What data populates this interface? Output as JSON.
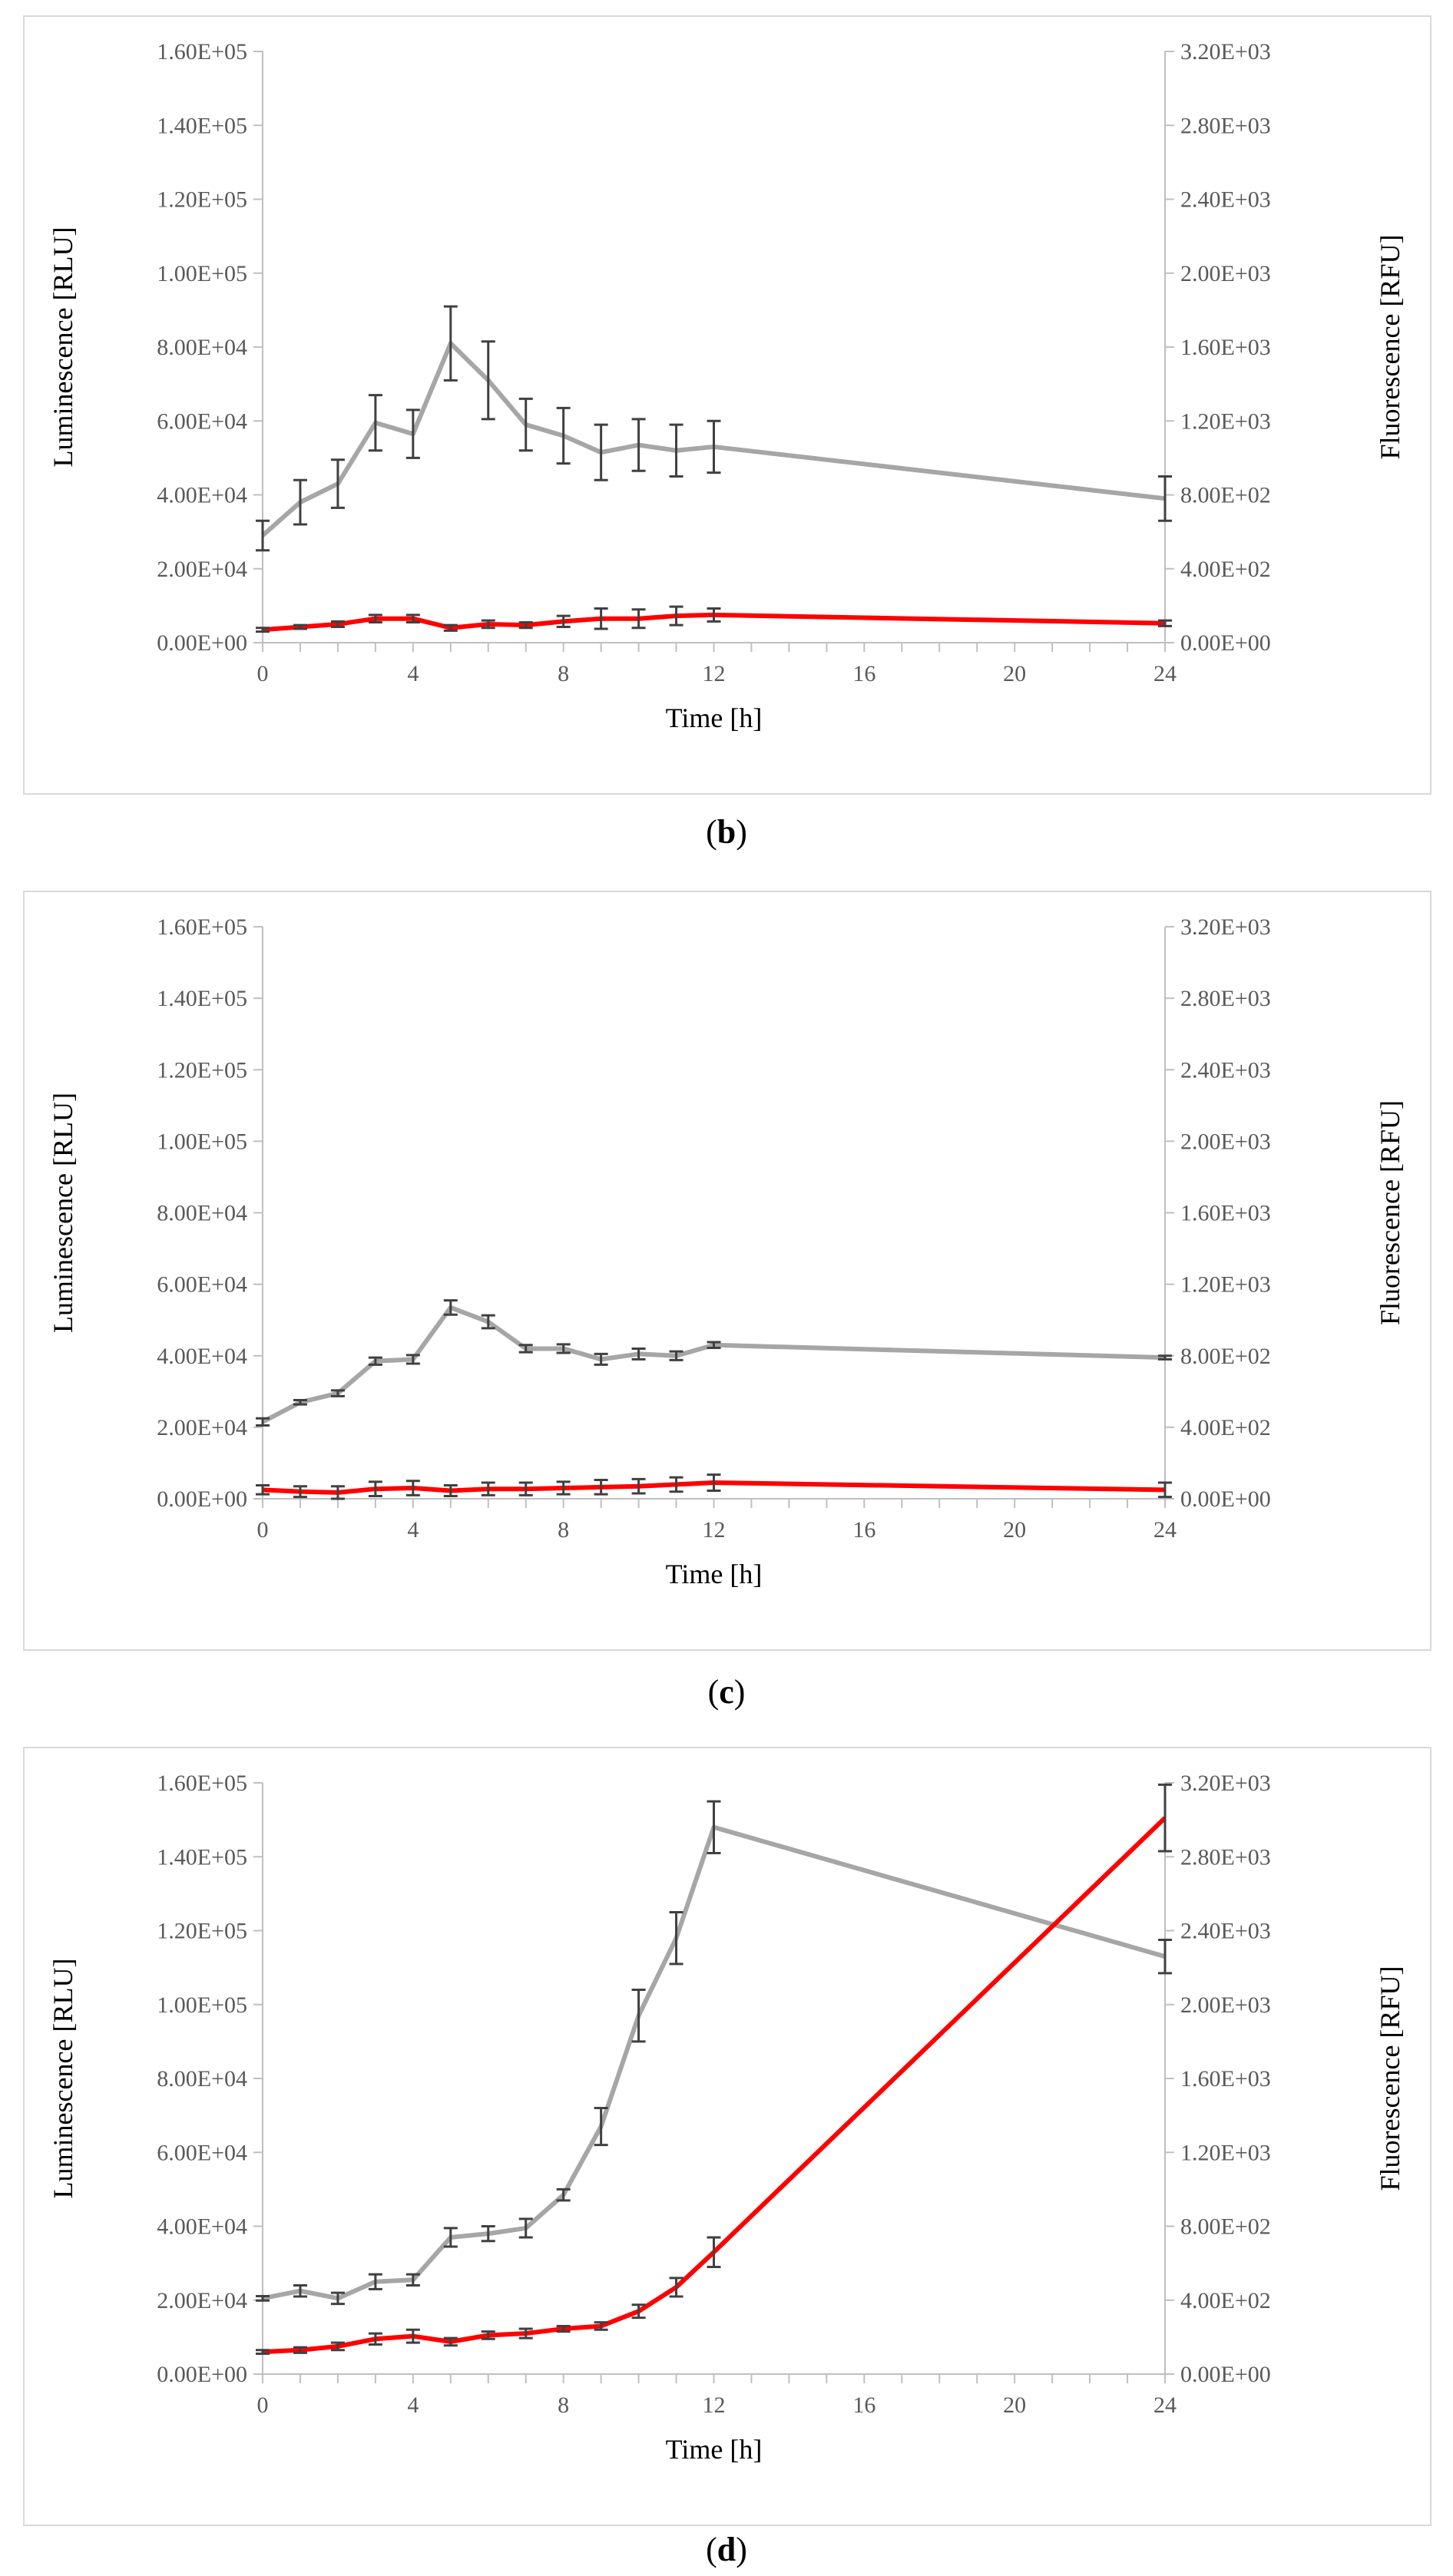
{
  "captions": {
    "b": "b",
    "c": "c",
    "d": "d"
  },
  "colors": {
    "luminescence": "#a6a6a6",
    "fluorescence": "#ff0000",
    "errorbar": "#404040",
    "axis": "#bfbfbf",
    "tick_text": "#595959"
  },
  "chart_data": [
    {
      "id": "b",
      "type": "line",
      "x": [
        0,
        1,
        2,
        3,
        4,
        5,
        6,
        7,
        8,
        9,
        10,
        11,
        12,
        24
      ],
      "xlabel": "Time [h]",
      "xticks": [
        "0",
        "4",
        "8",
        "12",
        "16",
        "20",
        "24"
      ],
      "xlim": [
        0,
        24
      ],
      "ylabel": "Luminescence [RLU]",
      "y2label": "Fluorescence [RFU]",
      "ylim": [
        0,
        160000
      ],
      "y2lim": [
        0,
        3200
      ],
      "yticks": [
        "0.00E+00",
        "2.00E+04",
        "4.00E+04",
        "6.00E+04",
        "8.00E+04",
        "1.00E+05",
        "1.20E+05",
        "1.40E+05",
        "1.60E+05"
      ],
      "y2ticks": [
        "0.00E+00",
        "4.00E+02",
        "8.00E+02",
        "1.20E+03",
        "1.60E+03",
        "2.00E+03",
        "2.40E+03",
        "2.80E+03",
        "3.20E+03"
      ],
      "series": [
        {
          "name": "Luminescence",
          "axis": "left",
          "color": "#a6a6a6",
          "values": [
            29000,
            38000,
            43000,
            59500,
            56500,
            81000,
            71000,
            59000,
            56000,
            51500,
            53500,
            52000,
            53000,
            39000
          ],
          "errors": [
            4000,
            6000,
            6500,
            7500,
            6500,
            10000,
            10500,
            7000,
            7500,
            7500,
            7000,
            7000,
            7000,
            6000
          ]
        },
        {
          "name": "Fluorescence",
          "axis": "right",
          "color": "#ff0000",
          "values": [
            70,
            85,
            100,
            130,
            130,
            80,
            100,
            95,
            115,
            130,
            130,
            145,
            150,
            105
          ],
          "errors": [
            10,
            10,
            15,
            20,
            20,
            15,
            20,
            15,
            30,
            55,
            50,
            50,
            35,
            15
          ]
        }
      ]
    },
    {
      "id": "c",
      "type": "line",
      "x": [
        0,
        1,
        2,
        3,
        4,
        5,
        6,
        7,
        8,
        9,
        10,
        11,
        12,
        24
      ],
      "xlabel": "Time [h]",
      "xticks": [
        "0",
        "4",
        "8",
        "12",
        "16",
        "20",
        "24"
      ],
      "xlim": [
        0,
        24
      ],
      "ylabel": "Luminescence [RLU]",
      "y2label": "Fluorescence [RFU]",
      "ylim": [
        0,
        160000
      ],
      "y2lim": [
        0,
        3200
      ],
      "yticks": [
        "0.00E+00",
        "2.00E+04",
        "4.00E+04",
        "6.00E+04",
        "8.00E+04",
        "1.00E+05",
        "1.20E+05",
        "1.40E+05",
        "1.60E+05"
      ],
      "y2ticks": [
        "0.00E+00",
        "4.00E+02",
        "8.00E+02",
        "1.20E+03",
        "1.60E+03",
        "2.00E+03",
        "2.40E+03",
        "2.80E+03",
        "3.20E+03"
      ],
      "series": [
        {
          "name": "Luminescence",
          "axis": "left",
          "color": "#a6a6a6",
          "values": [
            21500,
            27000,
            29500,
            38500,
            39000,
            53500,
            49500,
            42000,
            42000,
            39000,
            40500,
            40000,
            43000,
            39500
          ],
          "errors": [
            1000,
            600,
            800,
            1000,
            1200,
            2000,
            1800,
            1000,
            1200,
            1500,
            1500,
            1200,
            800,
            500
          ]
        },
        {
          "name": "Fluorescence",
          "axis": "right",
          "color": "#ff0000",
          "values": [
            50,
            40,
            35,
            55,
            60,
            45,
            55,
            55,
            60,
            65,
            70,
            80,
            90,
            50
          ],
          "errors": [
            25,
            30,
            35,
            40,
            40,
            30,
            35,
            35,
            35,
            40,
            40,
            40,
            45,
            40
          ]
        }
      ]
    },
    {
      "id": "d",
      "type": "line",
      "x": [
        0,
        1,
        2,
        3,
        4,
        5,
        6,
        7,
        8,
        9,
        10,
        11,
        12,
        24
      ],
      "xlabel": "Time [h]",
      "xticks": [
        "0",
        "4",
        "8",
        "12",
        "16",
        "20",
        "24"
      ],
      "xlim": [
        0,
        24
      ],
      "ylabel": "Luminescence [RLU]",
      "y2label": "Fluorescence [RFU]",
      "ylim": [
        0,
        160000
      ],
      "y2lim": [
        0,
        3200
      ],
      "yticks": [
        "0.00E+00",
        "2.00E+04",
        "4.00E+04",
        "6.00E+04",
        "8.00E+04",
        "1.00E+05",
        "1.20E+05",
        "1.40E+05",
        "1.60E+05"
      ],
      "y2ticks": [
        "0.00E+00",
        "4.00E+02",
        "8.00E+02",
        "1.20E+03",
        "1.60E+03",
        "2.00E+03",
        "2.40E+03",
        "2.80E+03",
        "3.20E+03"
      ],
      "series": [
        {
          "name": "Luminescence",
          "axis": "left",
          "color": "#a6a6a6",
          "values": [
            20500,
            22500,
            20500,
            25000,
            25500,
            37000,
            38000,
            39500,
            48500,
            67000,
            97000,
            118000,
            148000,
            113000
          ],
          "errors": [
            600,
            1500,
            1500,
            2000,
            1500,
            2500,
            2000,
            2500,
            1500,
            5000,
            7000,
            7000,
            7000,
            4500
          ]
        },
        {
          "name": "Fluorescence",
          "axis": "right",
          "color": "#ff0000",
          "values": [
            120,
            130,
            150,
            190,
            205,
            175,
            210,
            220,
            245,
            260,
            340,
            470,
            660,
            3010
          ],
          "errors": [
            10,
            15,
            20,
            30,
            35,
            20,
            20,
            25,
            15,
            20,
            35,
            50,
            80,
            180
          ]
        }
      ]
    }
  ]
}
